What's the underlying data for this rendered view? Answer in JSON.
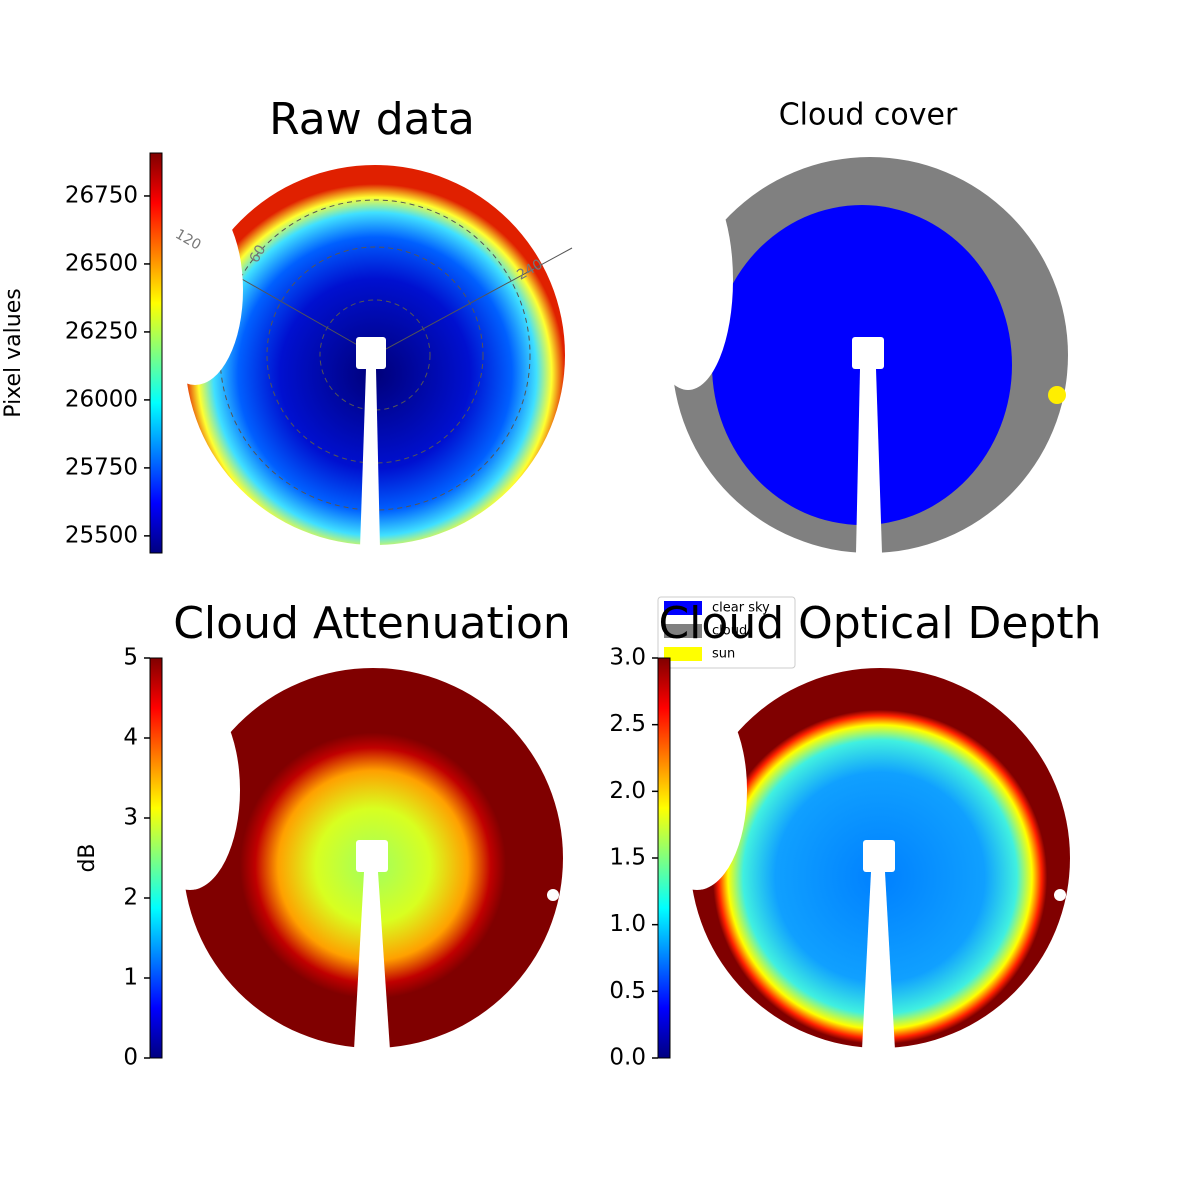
{
  "chart_data": [
    {
      "type": "heatmap",
      "title": "Raw data",
      "colorbar_label": "Pixel values",
      "colormap": "jet",
      "clim": [
        25437,
        26908
      ],
      "cticks": [
        25500,
        25750,
        26000,
        26250,
        26500,
        26750
      ],
      "annotations": [
        "120",
        "60",
        "240"
      ]
    },
    {
      "type": "categorical_map",
      "title": "Cloud cover",
      "legend": [
        {
          "name": "clear sky",
          "color": "#0000ff"
        },
        {
          "name": "cloud",
          "color": "#808080"
        },
        {
          "name": "sun",
          "color": "#ffff00"
        }
      ]
    },
    {
      "type": "heatmap",
      "title": "Cloud Attenuation",
      "colorbar_label": "dB",
      "colormap": "jet",
      "clim": [
        0,
        5
      ],
      "cticks": [
        0,
        1,
        2,
        3,
        4,
        5
      ]
    },
    {
      "type": "heatmap",
      "title": "Cloud Optical Depth",
      "colormap": "jet",
      "clim": [
        0,
        3
      ],
      "cticks": [
        {
          "value": 0,
          "label": "0.0"
        },
        {
          "value": 0.5,
          "label": "0.5"
        },
        {
          "value": 1,
          "label": "1.0"
        },
        {
          "value": 1.5,
          "label": "1.5"
        },
        {
          "value": 2,
          "label": "2.0"
        },
        {
          "value": 2.5,
          "label": "2.5"
        },
        {
          "value": 3,
          "label": "3.0"
        }
      ]
    }
  ]
}
